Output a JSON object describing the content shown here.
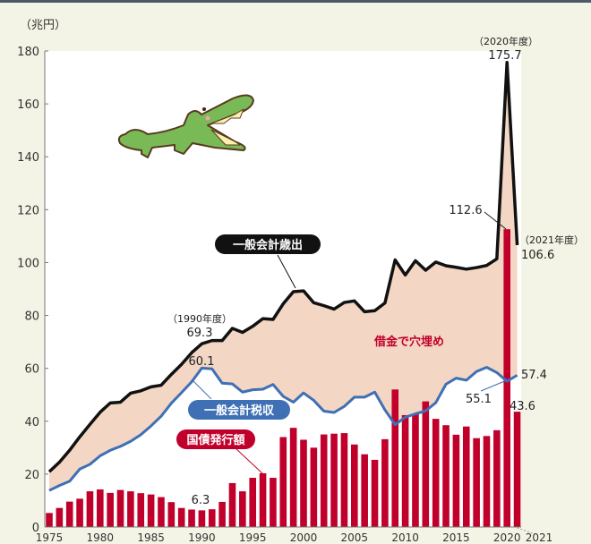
{
  "chart_data": {
    "type": "bar+line",
    "unit_label": "（兆円）",
    "ylim": [
      0,
      180
    ],
    "yticks": [
      0,
      20,
      40,
      60,
      80,
      100,
      120,
      140,
      160,
      180
    ],
    "xticks": [
      1975,
      1980,
      1985,
      1990,
      1995,
      2000,
      2005,
      2010,
      2015,
      2020
    ],
    "xtick_last": "2021",
    "years": [
      1975,
      1976,
      1977,
      1978,
      1979,
      1980,
      1981,
      1982,
      1983,
      1984,
      1985,
      1986,
      1987,
      1988,
      1989,
      1990,
      1991,
      1992,
      1993,
      1994,
      1995,
      1996,
      1997,
      1998,
      1999,
      2000,
      2001,
      2002,
      2003,
      2004,
      2005,
      2006,
      2007,
      2008,
      2009,
      2010,
      2011,
      2012,
      2013,
      2014,
      2015,
      2016,
      2017,
      2018,
      2019,
      2020,
      2021
    ],
    "series": [
      {
        "name": "一般会計歳出",
        "kind": "line",
        "color": "#111111",
        "values": [
          20.9,
          24.5,
          29.0,
          34.1,
          38.8,
          43.4,
          46.9,
          47.2,
          50.6,
          51.5,
          53.0,
          53.6,
          57.7,
          61.5,
          65.9,
          69.3,
          70.5,
          70.5,
          75.1,
          73.6,
          75.9,
          78.8,
          78.5,
          84.4,
          89.0,
          89.3,
          84.8,
          83.7,
          82.4,
          84.9,
          85.5,
          81.4,
          81.8,
          84.7,
          101.0,
          95.3,
          100.7,
          97.1,
          100.2,
          98.8,
          98.2,
          97.5,
          98.1,
          98.9,
          101.4,
          175.7,
          106.6
        ]
      },
      {
        "name": "一般会計税収",
        "kind": "line",
        "color": "#3f6fb5",
        "values": [
          13.8,
          15.7,
          17.3,
          21.9,
          23.7,
          26.9,
          29.0,
          30.5,
          32.4,
          34.9,
          38.2,
          41.9,
          46.8,
          50.8,
          54.9,
          60.1,
          59.8,
          54.4,
          54.1,
          51.0,
          51.9,
          52.1,
          53.9,
          49.4,
          47.2,
          50.7,
          47.9,
          43.8,
          43.3,
          45.6,
          49.1,
          49.1,
          51.0,
          44.3,
          38.7,
          41.5,
          42.8,
          43.9,
          47.0,
          54.0,
          56.3,
          55.5,
          58.8,
          60.4,
          58.4,
          55.1,
          57.4
        ]
      },
      {
        "name": "国債発行額",
        "kind": "bar",
        "color": "#c0002a",
        "values": [
          5.3,
          7.2,
          9.6,
          10.7,
          13.5,
          14.2,
          12.9,
          14.0,
          13.5,
          12.8,
          12.3,
          11.3,
          9.4,
          7.2,
          6.6,
          6.3,
          6.7,
          9.5,
          16.6,
          13.5,
          18.6,
          20.3,
          18.6,
          34.0,
          37.5,
          33.0,
          30.0,
          35.0,
          35.3,
          35.5,
          31.2,
          27.5,
          25.4,
          33.2,
          52.0,
          42.3,
          42.8,
          47.5,
          40.9,
          38.5,
          34.9,
          38.0,
          33.6,
          34.4,
          36.6,
          112.6,
          43.6
        ]
      }
    ],
    "gap_fill_color": "#f3d6c4",
    "gap_label": "借金で穴埋め",
    "legend": {
      "expenditure": "一般会計歳出",
      "tax": "一般会計税収",
      "bonds": "国債発行額"
    },
    "annotations": {
      "y1990_year": "（1990年度）",
      "y1990_exp": "69.3",
      "y1990_tax": "60.1",
      "y1990_bond": "6.3",
      "y2020_year": "（2020年度）",
      "y2020_exp": "175.7",
      "y2020_bond": "112.6",
      "y2020_tax": "55.1",
      "y2021_year": "（2021年度）",
      "y2021_exp": "106.6",
      "y2021_tax": "57.4",
      "y2021_bond": "43.6"
    }
  }
}
